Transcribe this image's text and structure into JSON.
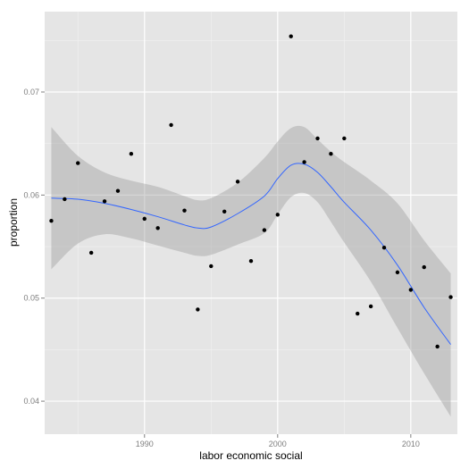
{
  "chart_data": {
    "type": "scatter",
    "title": "",
    "xlabel": "labor economic social",
    "ylabel": "proportion",
    "xlim": [
      1982.5,
      2013.5
    ],
    "ylim": [
      0.0368,
      0.0778
    ],
    "x_ticks": [
      1990,
      2000,
      2010
    ],
    "y_ticks": [
      0.04,
      0.05,
      0.06,
      0.07
    ],
    "x_tick_labels": [
      "1990",
      "2000",
      "2010"
    ],
    "y_tick_labels": [
      "0.04",
      "0.05",
      "0.06",
      "0.07"
    ],
    "grid": true,
    "points": [
      {
        "x": 1983,
        "y": 0.0575
      },
      {
        "x": 1984,
        "y": 0.0596
      },
      {
        "x": 1985,
        "y": 0.0631
      },
      {
        "x": 1986,
        "y": 0.0544
      },
      {
        "x": 1987,
        "y": 0.0594
      },
      {
        "x": 1988,
        "y": 0.0604
      },
      {
        "x": 1989,
        "y": 0.064
      },
      {
        "x": 1990,
        "y": 0.0577
      },
      {
        "x": 1991,
        "y": 0.0568
      },
      {
        "x": 1992,
        "y": 0.0668
      },
      {
        "x": 1993,
        "y": 0.0585
      },
      {
        "x": 1994,
        "y": 0.0489
      },
      {
        "x": 1995,
        "y": 0.0531
      },
      {
        "x": 1996,
        "y": 0.0584
      },
      {
        "x": 1997,
        "y": 0.0613
      },
      {
        "x": 1998,
        "y": 0.0536
      },
      {
        "x": 1999,
        "y": 0.0566
      },
      {
        "x": 2000,
        "y": 0.0581
      },
      {
        "x": 2001,
        "y": 0.0754
      },
      {
        "x": 2002,
        "y": 0.0632
      },
      {
        "x": 2003,
        "y": 0.0655
      },
      {
        "x": 2004,
        "y": 0.064
      },
      {
        "x": 2005,
        "y": 0.0655
      },
      {
        "x": 2006,
        "y": 0.0485
      },
      {
        "x": 2007,
        "y": 0.0492
      },
      {
        "x": 2008,
        "y": 0.0549
      },
      {
        "x": 2009,
        "y": 0.0525
      },
      {
        "x": 2010,
        "y": 0.0508
      },
      {
        "x": 2011,
        "y": 0.053
      },
      {
        "x": 2012,
        "y": 0.0453
      },
      {
        "x": 2013,
        "y": 0.0501
      }
    ],
    "smooth": {
      "method": "loess",
      "x": [
        1983,
        1985,
        1987,
        1989,
        1991,
        1993,
        1994,
        1995,
        1997,
        1999,
        2000,
        2001,
        2002,
        2003,
        2004,
        2005,
        2007,
        2009,
        2011,
        2013
      ],
      "y": [
        0.0597,
        0.0596,
        0.0592,
        0.0586,
        0.0579,
        0.0571,
        0.0568,
        0.0569,
        0.0582,
        0.0599,
        0.0616,
        0.0629,
        0.063,
        0.0622,
        0.0608,
        0.0593,
        0.0566,
        0.0532,
        0.0491,
        0.0455
      ],
      "ymin": [
        0.0528,
        0.0553,
        0.0562,
        0.0558,
        0.0551,
        0.0544,
        0.0541,
        0.0542,
        0.0552,
        0.0563,
        0.0581,
        0.0598,
        0.0602,
        0.0593,
        0.0574,
        0.0554,
        0.0516,
        0.0471,
        0.0427,
        0.0385
      ],
      "ymax": [
        0.0666,
        0.0638,
        0.0622,
        0.0614,
        0.0608,
        0.0599,
        0.0595,
        0.0597,
        0.0612,
        0.0636,
        0.0652,
        0.0665,
        0.0666,
        0.0654,
        0.0642,
        0.0632,
        0.0614,
        0.0592,
        0.0556,
        0.0524
      ]
    },
    "colors": {
      "panel": "#e5e5e5",
      "grid_major": "#ffffff",
      "grid_minor": "#f2f2f2",
      "ribbon": "#999999",
      "line": "#3366ff",
      "point": "#000000"
    }
  }
}
